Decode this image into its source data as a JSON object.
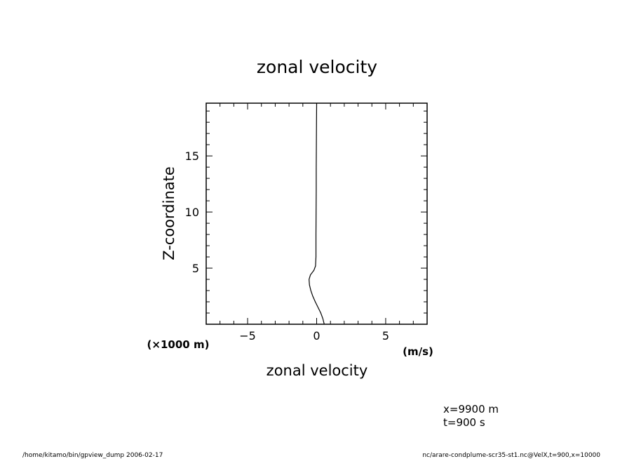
{
  "chart_data": {
    "type": "line",
    "title": "zonal velocity",
    "xlabel": "zonal velocity",
    "ylabel": "Z-coordinate",
    "x_unit": "(m/s)",
    "y_unit": "(×1000 m)",
    "xlim": [
      -8,
      8
    ],
    "ylim": [
      0,
      19.7
    ],
    "xticks": [
      -5,
      0,
      5
    ],
    "xtick_labels": [
      "−5",
      "0",
      "5"
    ],
    "yticks": [
      5,
      10,
      15
    ],
    "ytick_labels": [
      "5",
      "10",
      "15"
    ],
    "grid": false,
    "series": [
      {
        "x": [
          0.55,
          0.45,
          0.3,
          0.1,
          -0.1,
          -0.28,
          -0.42,
          -0.52,
          -0.55,
          -0.45,
          -0.2,
          -0.08,
          -0.05,
          -0.05,
          -0.04,
          -0.03,
          -0.03,
          -0.02,
          -0.01,
          0.0
        ],
        "y": [
          0.0,
          0.5,
          1.0,
          1.5,
          2.0,
          2.5,
          3.0,
          3.5,
          4.0,
          4.4,
          4.8,
          5.2,
          6.0,
          8.0,
          10.0,
          12.0,
          14.0,
          16.0,
          18.0,
          19.7
        ]
      }
    ]
  },
  "annotations": {
    "position_x": "x=9900  m",
    "time": "t=900  s"
  },
  "footer": {
    "left": "/home/kitamo/bin/gpview_dump  2006-02-17",
    "right": "nc/arare-condplume-scr35-st1.nc@VelX,t=900,x=10000"
  }
}
